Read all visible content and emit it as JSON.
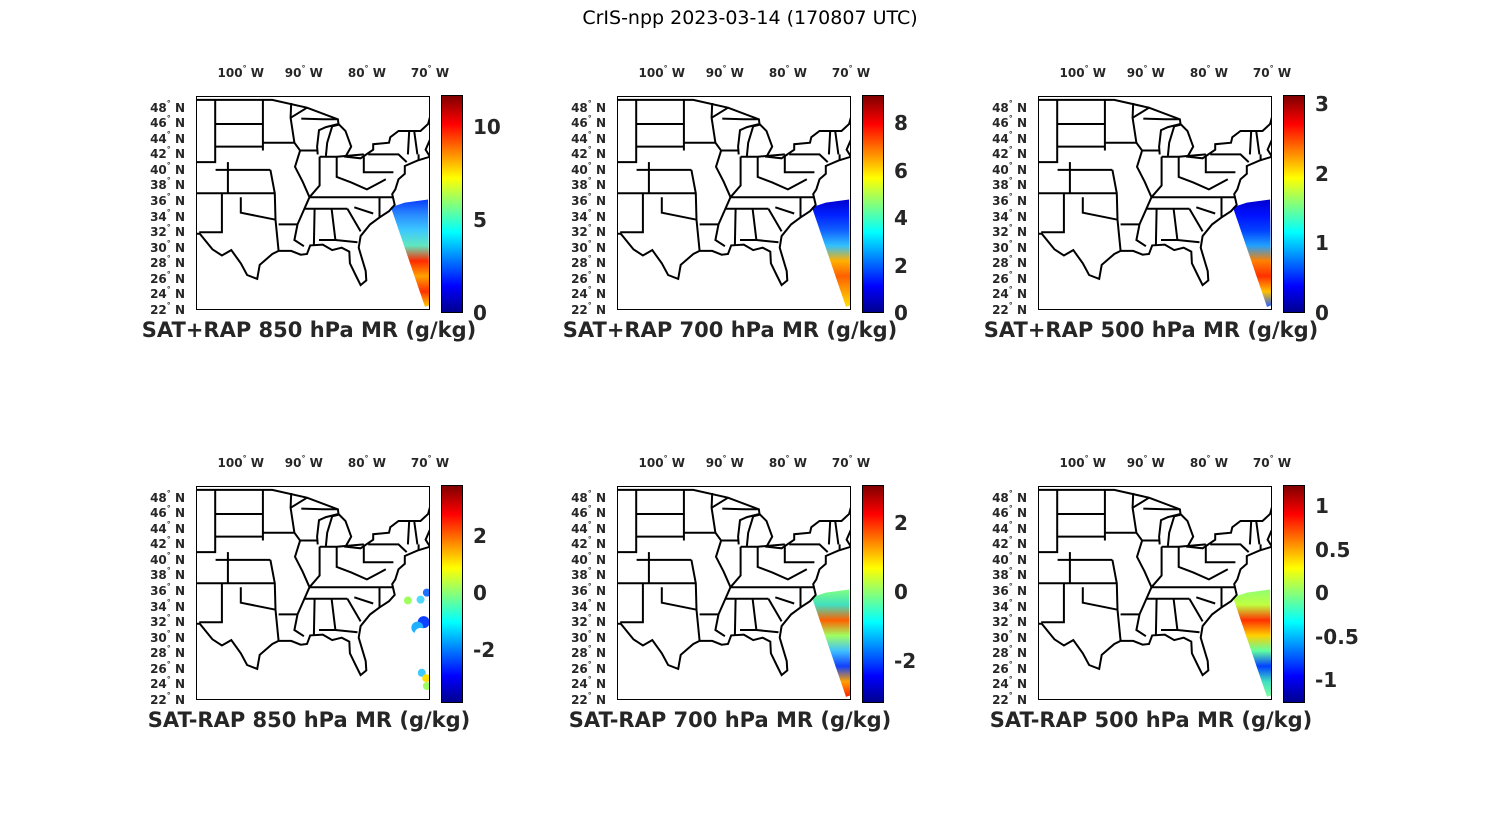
{
  "figure_title": "CrIS-npp 2023-03-14 (170807 UTC)",
  "colormap": "jet",
  "lon_ticks": [
    {
      "value": -100,
      "label": "100",
      "hemi": "W"
    },
    {
      "value": -90,
      "label": "90",
      "hemi": "W"
    },
    {
      "value": -80,
      "label": "80",
      "hemi": "W"
    },
    {
      "value": -70,
      "label": "70",
      "hemi": "W"
    }
  ],
  "lat_ticks": [
    {
      "value": 48,
      "label": "48"
    },
    {
      "value": 46,
      "label": "46"
    },
    {
      "value": 44,
      "label": "44"
    },
    {
      "value": 42,
      "label": "42"
    },
    {
      "value": 40,
      "label": "40"
    },
    {
      "value": 38,
      "label": "38"
    },
    {
      "value": 36,
      "label": "36"
    },
    {
      "value": 34,
      "label": "34"
    },
    {
      "value": 32,
      "label": "32"
    },
    {
      "value": 30,
      "label": "30"
    },
    {
      "value": 28,
      "label": "28"
    },
    {
      "value": 26,
      "label": "26"
    },
    {
      "value": 24,
      "label": "24"
    },
    {
      "value": 22,
      "label": "22"
    }
  ],
  "degree_symbol": "°",
  "lat_hemi": "N",
  "chart_data": [
    {
      "type": "map-scatter",
      "title": "SAT+RAP 850 hPa MR (g/kg)",
      "clim": [
        0,
        11.7
      ],
      "cbar_ticks": [
        {
          "v": 0,
          "l": "0"
        },
        {
          "v": 5,
          "l": "5"
        },
        {
          "v": 10,
          "l": "10"
        }
      ],
      "swath_colors": [
        "#0a3cff",
        "#2a8cff",
        "#3cc8ff",
        "#60e8c0",
        "#ff2a00",
        "#ffa000",
        "#ff3000",
        "#ffd000"
      ]
    },
    {
      "type": "map-scatter",
      "title": "SAT+RAP 700 hPa MR (g/kg)",
      "clim": [
        0,
        9.2
      ],
      "cbar_ticks": [
        {
          "v": 0,
          "l": "0"
        },
        {
          "v": 2,
          "l": "2"
        },
        {
          "v": 4,
          "l": "4"
        },
        {
          "v": 6,
          "l": "6"
        },
        {
          "v": 8,
          "l": "8"
        }
      ],
      "swath_colors": [
        "#0000d0",
        "#0020ff",
        "#1060ff",
        "#30c0ff",
        "#ffb000",
        "#ff6000",
        "#ffa000",
        "#ffe000"
      ]
    },
    {
      "type": "map-scatter",
      "title": "SAT+RAP 500 hPa MR (g/kg)",
      "clim": [
        0,
        3.13
      ],
      "cbar_ticks": [
        {
          "v": 0,
          "l": "0"
        },
        {
          "v": 1,
          "l": "1"
        },
        {
          "v": 2,
          "l": "2"
        },
        {
          "v": 3,
          "l": "3"
        }
      ],
      "swath_colors": [
        "#0000d0",
        "#0010ff",
        "#0040ff",
        "#20a0ff",
        "#ff8000",
        "#ff3000",
        "#ffc000",
        "#2060ff"
      ]
    },
    {
      "type": "map-scatter",
      "title": "SAT-RAP 850 hPa MR (g/kg)",
      "clim": [
        -3.83,
        3.76
      ],
      "cbar_ticks": [
        {
          "v": 2,
          "l": "2"
        },
        {
          "v": 0,
          "l": "0"
        },
        {
          "v": -2,
          "l": "-2"
        }
      ],
      "swath_colors": [
        "#a0ff60",
        "#50d8ff",
        "#2070ff",
        "#1040ff",
        "#20b0ff",
        "#ffffff",
        "#40c8ff",
        "#ffe000"
      ],
      "sparse": true
    },
    {
      "type": "map-scatter",
      "title": "SAT-RAP 700 hPa MR (g/kg)",
      "clim": [
        -3.2,
        3.1
      ],
      "cbar_ticks": [
        {
          "v": 2,
          "l": "2"
        },
        {
          "v": 0,
          "l": "0"
        },
        {
          "v": -2,
          "l": "-2"
        }
      ],
      "swath_colors": [
        "#80ff80",
        "#40e0c0",
        "#ff6000",
        "#a0ff60",
        "#40c0ff",
        "#1040ff",
        "#ffa000",
        "#ff2000"
      ]
    },
    {
      "type": "map-scatter",
      "title": "SAT-RAP 500 hPa MR (g/kg)",
      "clim": [
        -1.26,
        1.24
      ],
      "cbar_ticks": [
        {
          "v": 1,
          "l": "1"
        },
        {
          "v": 0.5,
          "l": "0.5"
        },
        {
          "v": 0,
          "l": "0"
        },
        {
          "v": -0.5,
          "l": "-0.5"
        },
        {
          "v": -1,
          "l": "-1"
        }
      ],
      "swath_colors": [
        "#90ff70",
        "#c0ff40",
        "#ff3000",
        "#ffd000",
        "#60ffa0",
        "#0040ff",
        "#40e0c0",
        "#80ffa0"
      ]
    }
  ]
}
